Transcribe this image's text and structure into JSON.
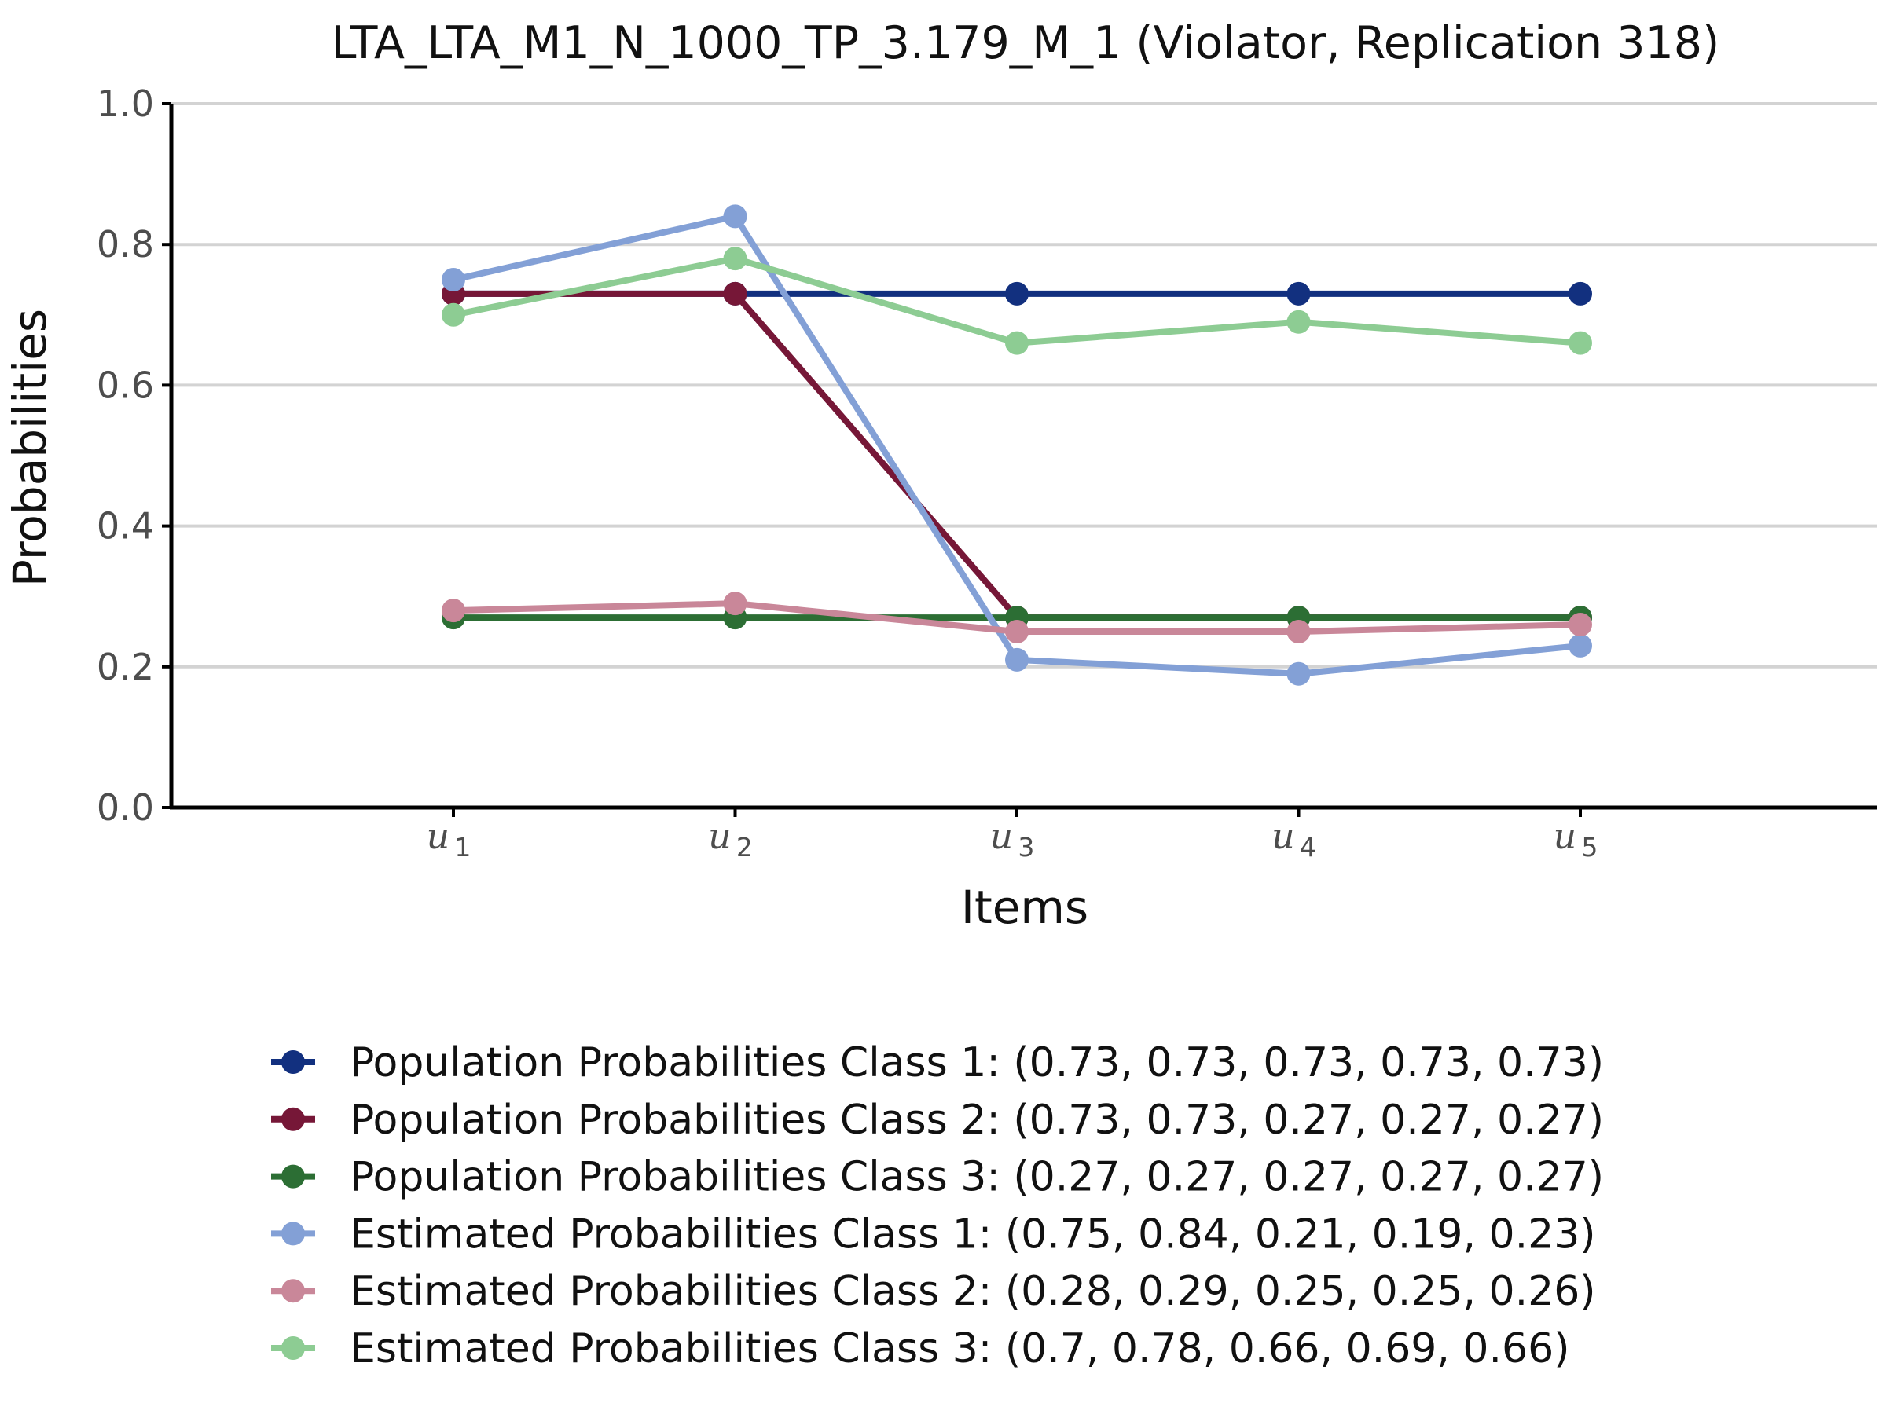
{
  "chart_data": {
    "type": "line",
    "title": "LTA_LTA_M1_N_1000_TP_3.179_M_1 (Violator, Replication 318)",
    "xlabel": "Items",
    "ylabel": "Probabilities",
    "ylim": [
      0,
      1
    ],
    "yticks": [
      "0.0",
      "0.2",
      "0.4",
      "0.6",
      "0.8",
      "1.0"
    ],
    "x": [
      {
        "base": "u",
        "sub": "1"
      },
      {
        "base": "u",
        "sub": "2"
      },
      {
        "base": "u",
        "sub": "3"
      },
      {
        "base": "u",
        "sub": "4"
      },
      {
        "base": "u",
        "sub": "5"
      }
    ],
    "grid": "horizontal",
    "legend_position": "bottom",
    "series": [
      {
        "name": "Population Probabilities Class 1: (0.73, 0.73, 0.73, 0.73, 0.73)",
        "values": [
          0.73,
          0.73,
          0.73,
          0.73,
          0.73
        ],
        "color": "#12307f"
      },
      {
        "name": "Population Probabilities Class 2: (0.73, 0.73, 0.27, 0.27, 0.27)",
        "values": [
          0.73,
          0.73,
          0.27,
          0.27,
          0.27
        ],
        "color": "#761737"
      },
      {
        "name": "Population Probabilities Class 3: (0.27, 0.27, 0.27, 0.27, 0.27)",
        "values": [
          0.27,
          0.27,
          0.27,
          0.27,
          0.27
        ],
        "color": "#2c6e34"
      },
      {
        "name": "Estimated Probabilities Class 1: (0.75, 0.84, 0.21, 0.19, 0.23)",
        "values": [
          0.75,
          0.84,
          0.21,
          0.19,
          0.23
        ],
        "color": "#83a0d6"
      },
      {
        "name": "Estimated Probabilities Class 2: (0.28, 0.29, 0.25, 0.25, 0.26)",
        "values": [
          0.28,
          0.29,
          0.25,
          0.25,
          0.26
        ],
        "color": "#c98799"
      },
      {
        "name": "Estimated Probabilities Class 3: (0.7, 0.78, 0.66, 0.69, 0.66)",
        "values": [
          0.7,
          0.78,
          0.66,
          0.69,
          0.66
        ],
        "color": "#8dcc93"
      }
    ]
  }
}
